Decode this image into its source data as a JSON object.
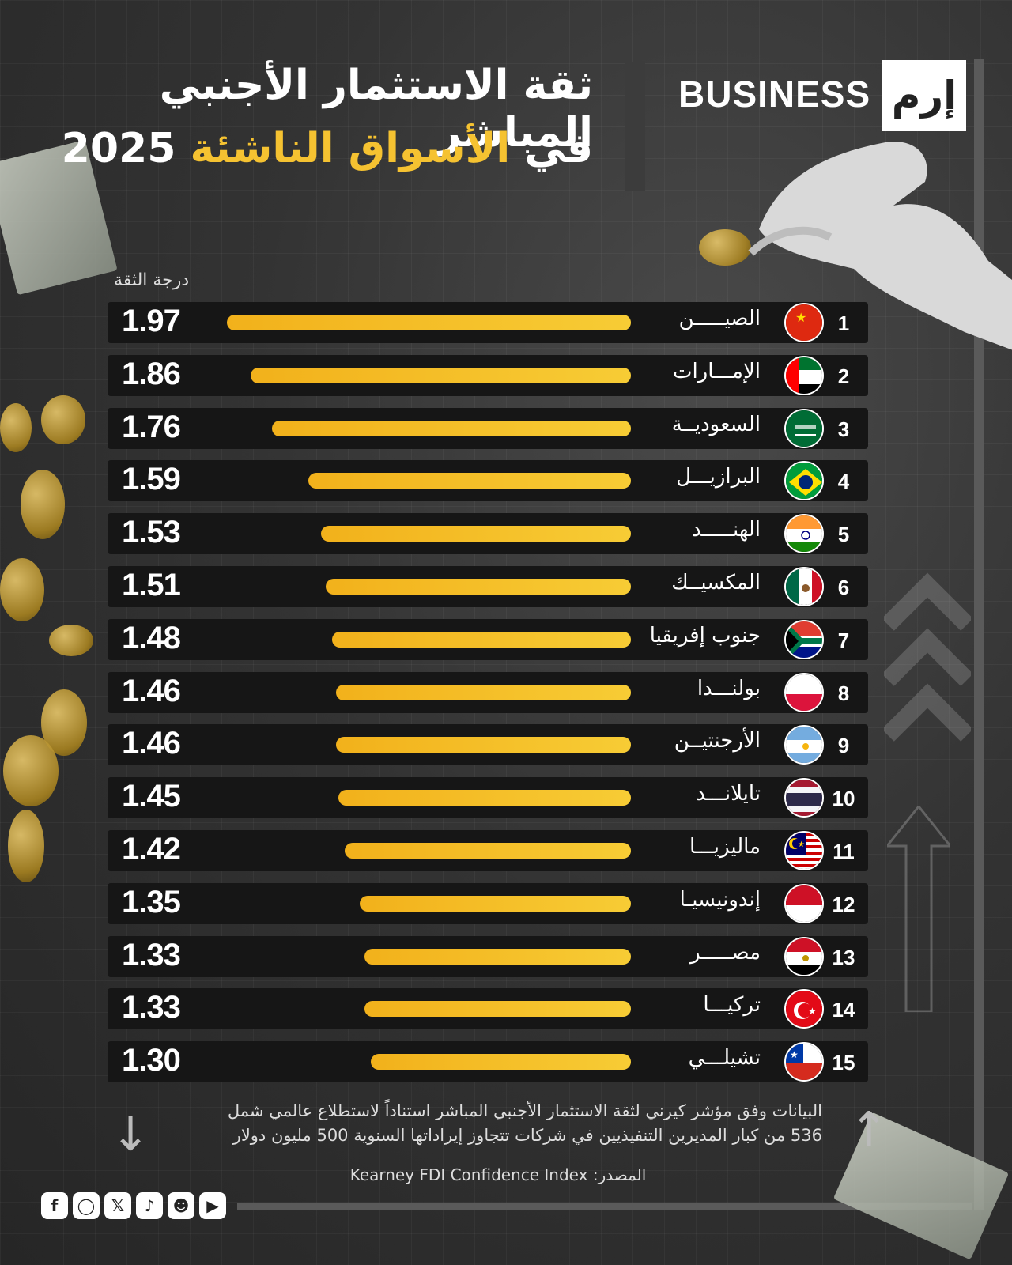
{
  "header": {
    "title_line1": "ثقة الاستثمار الأجنبي المباشر",
    "title_line2_prefix": "في",
    "title_line2_highlight": "الأسواق الناشئة",
    "title_line2_year": "2025"
  },
  "brand": {
    "name": "BUSINESS",
    "logo_text": "إرم"
  },
  "chart_data": {
    "type": "bar",
    "orientation": "horizontal",
    "value_label": "درجة الثقة",
    "categories": [
      "الصيـــــن",
      "الإمـــارات",
      "السعوديــة",
      "البرازيـــل",
      "الهنـــــد",
      "المكسيــك",
      "جنوب إفريقيا",
      "بولنـــدا",
      "الأرجنتيــن",
      "تايلانـــد",
      "ماليزيـــا",
      "إندونيسيـا",
      "مصـــــر",
      "تركيـــا",
      "تشيلـــي"
    ],
    "ranks": [
      "1",
      "2",
      "3",
      "4",
      "5",
      "6",
      "7",
      "8",
      "9",
      "10",
      "11",
      "12",
      "13",
      "14",
      "15"
    ],
    "values": [
      1.97,
      1.86,
      1.76,
      1.59,
      1.53,
      1.51,
      1.48,
      1.46,
      1.46,
      1.45,
      1.42,
      1.35,
      1.33,
      1.33,
      1.3
    ],
    "value_labels": [
      "1.97",
      "1.86",
      "1.76",
      "1.59",
      "1.53",
      "1.51",
      "1.48",
      "1.46",
      "1.46",
      "1.45",
      "1.42",
      "1.35",
      "1.33",
      "1.33",
      "1.30"
    ],
    "flags": [
      "china",
      "uae",
      "saudi",
      "brazil",
      "india",
      "mexico",
      "south-africa",
      "poland",
      "argentina",
      "thailand",
      "malaysia",
      "indonesia",
      "egypt",
      "turkey",
      "chile"
    ],
    "bar_color": "#f5c231"
  },
  "footer": {
    "note_line1": "البيانات وفق مؤشر كيرني لثقة الاستثمار الأجنبي المباشر استناداً لاستطلاع عالمي شمل",
    "note_line2": "536 من كبار المديرين التنفيذيين في شركات تتجاوز إيراداتها السنوية 500 مليون دولار",
    "source": "Kearney FDI Confidence Index :المصدر",
    "social_icons": [
      "facebook-icon",
      "instagram-icon",
      "x-icon",
      "tiktok-icon",
      "snapchat-icon",
      "youtube-icon"
    ]
  }
}
